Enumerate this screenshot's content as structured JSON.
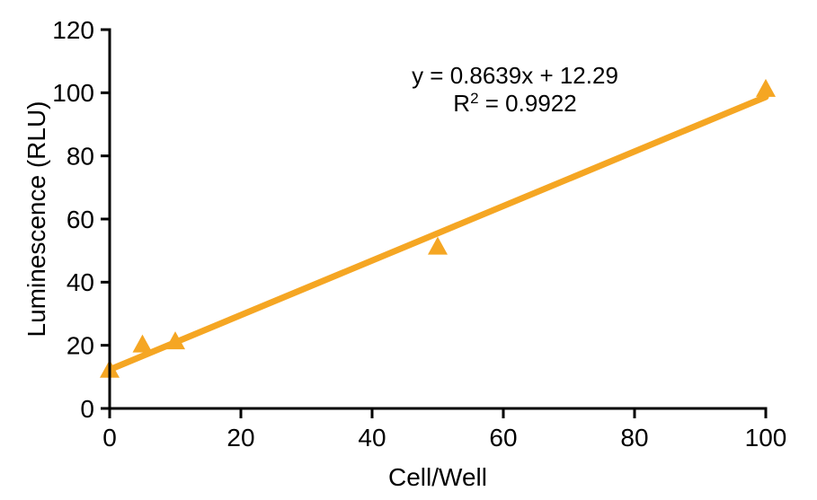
{
  "chart_data": {
    "type": "scatter",
    "x": [
      0,
      5,
      10,
      50,
      100
    ],
    "y": [
      12,
      20,
      21,
      51,
      101
    ],
    "marker": "triangle-up",
    "xlabel": "Cell/Well",
    "ylabel": "Luminescence (RLU)",
    "xlim": [
      0,
      100
    ],
    "ylim": [
      0,
      120
    ],
    "xticks": [
      0,
      20,
      40,
      60,
      80,
      100
    ],
    "yticks": [
      0,
      20,
      40,
      60,
      80,
      100,
      120
    ],
    "grid": false,
    "legend": "none",
    "trendline": {
      "slope": 0.8639,
      "intercept": 12.29,
      "r_squared": 0.9922,
      "x_range": [
        0,
        100
      ]
    },
    "annotation": {
      "equation": "y = 0.8639x + 12.29",
      "r_squared_base": "R",
      "r_squared_sup": "2",
      "r_squared_rest": " = 0.9922"
    },
    "colors": {
      "series": "#F5A623",
      "axis": "#000000",
      "text": "#000000",
      "background": "#FFFFFF"
    }
  }
}
